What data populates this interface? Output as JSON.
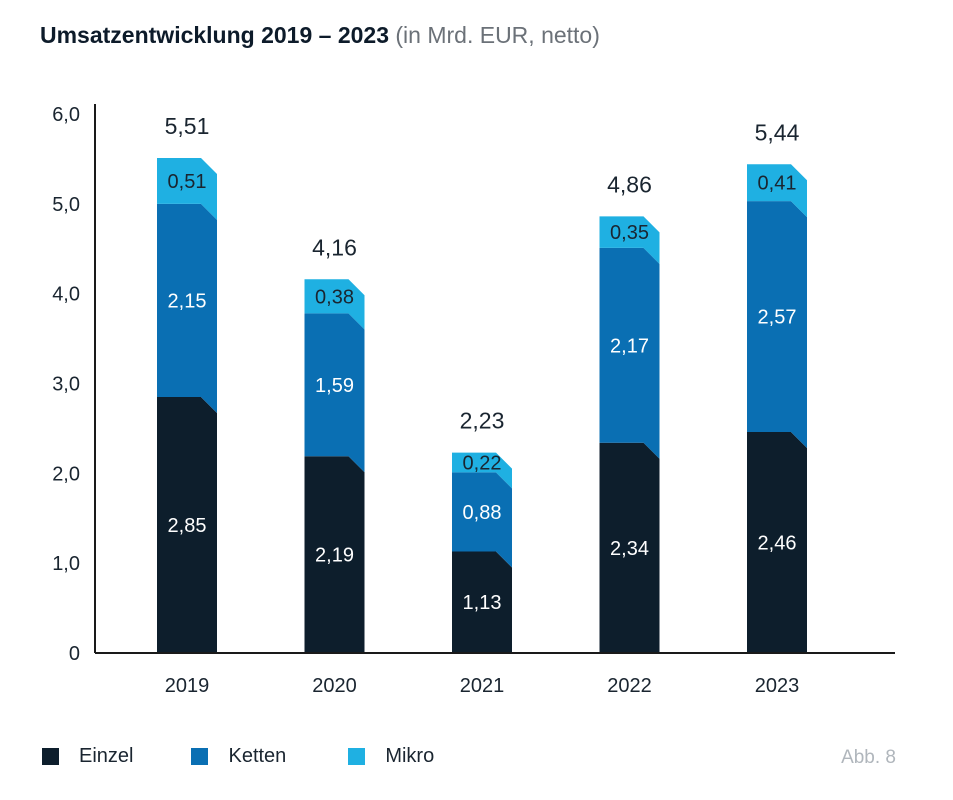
{
  "title": {
    "main": "Umsatzentwicklung 2019 – 2023",
    "sub": "(in Mrd. EUR, netto)"
  },
  "figure_label": "Abb. 8",
  "colors": {
    "Einzel": "#0d1e2c",
    "Ketten": "#0a6fb3",
    "Mikro": "#1fb0e2",
    "axis": "#1a1a1a",
    "label_dark": "#1a2530",
    "label_light": "#ffffff"
  },
  "chart_data": {
    "type": "bar",
    "stacked": true,
    "categories": [
      "2019",
      "2020",
      "2021",
      "2022",
      "2023"
    ],
    "series": [
      {
        "name": "Einzel",
        "values": [
          2.85,
          2.19,
          1.13,
          2.34,
          2.46
        ],
        "labels": [
          "2,85",
          "2,19",
          "1,13",
          "2,34",
          "2,46"
        ]
      },
      {
        "name": "Ketten",
        "values": [
          2.15,
          1.59,
          0.88,
          2.17,
          2.57
        ],
        "labels": [
          "2,15",
          "1,59",
          "0,88",
          "2,17",
          "2,57"
        ]
      },
      {
        "name": "Mikro",
        "values": [
          0.51,
          0.38,
          0.22,
          0.35,
          0.41
        ],
        "labels": [
          "0,51",
          "0,38",
          "0,22",
          "0,35",
          "0,41"
        ]
      }
    ],
    "totals": [
      5.51,
      4.16,
      2.23,
      4.86,
      5.44
    ],
    "total_labels": [
      "5,51",
      "4,16",
      "2,23",
      "4,86",
      "5,44"
    ],
    "ylim": [
      0,
      6.0
    ],
    "yticks": [
      0,
      1.0,
      2.0,
      3.0,
      4.0,
      5.0,
      6.0
    ],
    "ytick_labels": [
      "0",
      "1,0",
      "2,0",
      "3,0",
      "4,0",
      "5,0",
      "6,0"
    ],
    "xlabel": "",
    "ylabel": "",
    "grid": false,
    "legend_position": "bottom-left"
  }
}
